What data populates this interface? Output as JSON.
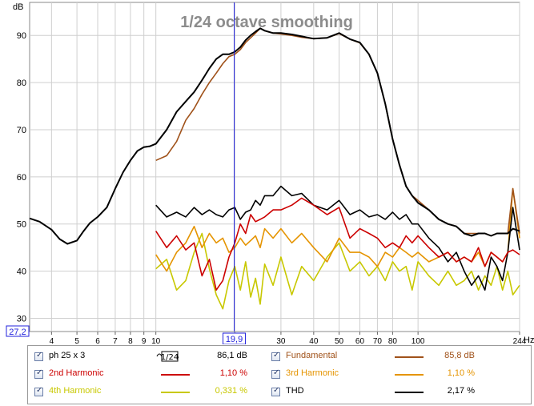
{
  "chart_data": {
    "type": "line",
    "title": "1/24 octave smoothing",
    "ylabel": "dB",
    "xlabel": "Hz",
    "xscale": "log",
    "xlim": [
      3.3,
      244
    ],
    "ylim": [
      27.2,
      97
    ],
    "x_ticks": [
      4,
      5,
      6,
      7,
      8,
      9,
      10,
      20,
      30,
      40,
      50,
      60,
      70,
      80,
      100,
      244
    ],
    "x_tick_labels": [
      "4",
      "5",
      "6",
      "7",
      "8",
      "9",
      "10",
      "",
      "30",
      "40",
      "50",
      "60",
      "70",
      "80",
      "100",
      "244"
    ],
    "y_ticks": [
      30,
      40,
      50,
      60,
      70,
      80,
      90
    ],
    "y_tick_labels": [
      "30",
      "40",
      "50",
      "60",
      "70",
      "80",
      "90"
    ],
    "y_min_label": "27,2",
    "cursor": {
      "x": 19.9,
      "label": "19,9"
    },
    "grid": true,
    "series": [
      {
        "name": "ph 25 x 3",
        "color": "#000000",
        "x": [
          3.3,
          3.6,
          4,
          4.3,
          4.6,
          5,
          5.3,
          5.6,
          6,
          6.5,
          7,
          7.5,
          8,
          8.5,
          9,
          9.5,
          10,
          11,
          12,
          13,
          14,
          15,
          16,
          17,
          18,
          19,
          20,
          21,
          22,
          23,
          24,
          25,
          26,
          28,
          30,
          33,
          36,
          40,
          45,
          50,
          55,
          60,
          65,
          70,
          75,
          80,
          85,
          90,
          95,
          100,
          110,
          120,
          130,
          140,
          150,
          160,
          170,
          180,
          190,
          200,
          210,
          220,
          230,
          244
        ],
        "y": [
          51.2,
          50.5,
          48.8,
          46.8,
          45.8,
          46.5,
          48.5,
          50.2,
          51.5,
          53.5,
          57.5,
          61,
          63.5,
          65.5,
          66.3,
          66.5,
          67,
          70,
          73.8,
          76,
          78,
          80.5,
          83,
          85,
          86,
          86,
          86.5,
          87.5,
          89,
          90,
          90.8,
          91.5,
          91,
          90.5,
          90.5,
          90.2,
          89.8,
          89.3,
          89.5,
          90.5,
          89.2,
          88.5,
          86,
          82,
          75.5,
          68,
          62.5,
          58,
          56,
          54.5,
          53,
          51,
          50,
          49.5,
          48,
          47.5,
          48,
          48,
          47.5,
          48,
          48,
          48,
          49,
          48.5
        ]
      },
      {
        "name": "2nd Harmonic",
        "color": "#cc0000",
        "value": "1,10 %",
        "x": [
          10,
          11,
          12,
          13,
          14,
          15,
          16,
          17,
          18,
          19,
          20,
          21,
          22,
          23,
          24,
          25,
          26,
          28,
          30,
          33,
          36,
          40,
          45,
          50,
          55,
          60,
          65,
          70,
          75,
          80,
          85,
          90,
          95,
          100,
          110,
          120,
          130,
          140,
          150,
          160,
          170,
          180,
          190,
          200,
          210,
          220,
          230,
          244
        ],
        "y": [
          48.5,
          45,
          47.5,
          44.5,
          46,
          39,
          42.5,
          36,
          38,
          43,
          46,
          50,
          48,
          52,
          50.5,
          51,
          51.5,
          53,
          53,
          54,
          55.5,
          54,
          52,
          53.5,
          47,
          49,
          48,
          47,
          45,
          46,
          45,
          47.5,
          46,
          47.5,
          45,
          43,
          44,
          42,
          43,
          42,
          45,
          41,
          44,
          43,
          42,
          44,
          44.5,
          43.5
        ]
      },
      {
        "name": "3rd Harmonic",
        "color": "#e59400",
        "value": "1,10 %",
        "x": [
          10,
          11,
          12,
          13,
          14,
          15,
          16,
          17,
          18,
          19,
          20,
          21,
          22,
          23,
          24,
          25,
          26,
          28,
          30,
          33,
          36,
          40,
          45,
          50,
          55,
          60,
          65,
          70,
          75,
          80,
          85,
          90,
          95,
          100,
          110,
          120,
          130,
          140,
          150,
          160,
          170,
          180,
          190,
          200,
          210,
          220,
          230,
          244
        ],
        "y": [
          43.5,
          40,
          44,
          46,
          49.5,
          45,
          48,
          46,
          47,
          44,
          45,
          47,
          45.5,
          46.5,
          47.5,
          45,
          49,
          47,
          49,
          46,
          48,
          45,
          42,
          47,
          44,
          44,
          43,
          41,
          44,
          43,
          45,
          44,
          43,
          44,
          42,
          43,
          44,
          42,
          43,
          42,
          44,
          41,
          44,
          43,
          42,
          44,
          57.5,
          47
        ]
      },
      {
        "name": "4th Harmonic",
        "color": "#c8c800",
        "value": "0,331 %",
        "x": [
          10,
          11,
          12,
          13,
          14,
          15,
          16,
          17,
          18,
          19,
          20,
          21,
          22,
          23,
          24,
          25,
          26,
          28,
          30,
          33,
          36,
          40,
          45,
          50,
          55,
          60,
          65,
          70,
          75,
          80,
          85,
          90,
          95,
          100,
          110,
          120,
          130,
          140,
          150,
          160,
          170,
          180,
          190,
          200,
          210,
          220,
          230,
          244
        ],
        "y": [
          40.5,
          42.5,
          36,
          38,
          44,
          48,
          40.5,
          35,
          32,
          38,
          41,
          36,
          42,
          34.5,
          38.5,
          33,
          41.5,
          37,
          43,
          35,
          41,
          38,
          43,
          46,
          40,
          42,
          39,
          41,
          38,
          42,
          40,
          41,
          36,
          42,
          39,
          37,
          40,
          37,
          38,
          40,
          36,
          39,
          37,
          41,
          36,
          40,
          35,
          37
        ]
      },
      {
        "name": "THD",
        "color": "#000000",
        "value": "2,17 %",
        "x": [
          10,
          11,
          12,
          13,
          14,
          15,
          16,
          17,
          18,
          19,
          20,
          21,
          22,
          23,
          24,
          25,
          26,
          28,
          30,
          33,
          36,
          40,
          45,
          50,
          55,
          60,
          65,
          70,
          75,
          80,
          85,
          90,
          95,
          100,
          110,
          120,
          130,
          140,
          150,
          160,
          170,
          180,
          190,
          200,
          210,
          220,
          230,
          244
        ],
        "y": [
          54,
          51.5,
          52.5,
          51.5,
          53.5,
          52,
          53,
          52,
          51.5,
          53,
          53.5,
          51,
          52.5,
          53,
          55,
          54,
          56,
          56,
          58,
          56,
          56.5,
          54,
          53,
          55,
          52,
          53,
          51.5,
          52,
          51,
          52.5,
          51,
          52,
          50,
          50,
          47,
          45,
          42,
          44,
          40,
          37,
          39,
          36,
          43,
          41,
          38,
          44,
          53.5,
          44.5
        ]
      },
      {
        "name": "Fundamental",
        "color": "#a0521a",
        "value": "85,8 dB",
        "x": [
          10,
          11,
          12,
          13,
          14,
          15,
          16,
          17,
          18,
          19,
          20,
          21,
          22,
          23,
          24,
          25,
          26,
          28,
          30,
          33,
          36,
          40,
          45,
          50,
          55,
          60,
          65,
          70,
          75,
          80,
          85,
          90,
          95,
          100,
          110,
          120,
          130,
          140,
          150,
          160,
          170,
          180,
          190,
          200,
          210,
          220,
          230,
          244
        ],
        "y": [
          63.5,
          64.5,
          67.5,
          72,
          74.5,
          77.5,
          80,
          82,
          84,
          85.5,
          86,
          87,
          88.5,
          89.5,
          90.5,
          91.5,
          91,
          90.5,
          90.3,
          90,
          89.6,
          89.3,
          89.5,
          90.4,
          89.2,
          88.4,
          86,
          82,
          75.5,
          68,
          62.5,
          58,
          56,
          55,
          53,
          51,
          50,
          49.5,
          48,
          48,
          48,
          48,
          47.5,
          48,
          48,
          48,
          57.5,
          48
        ]
      }
    ]
  },
  "legend": {
    "rows": [
      {
        "label": "ph 25 x 3",
        "value": "86,1 dB",
        "smoothing_icon": "1/24",
        "label_color": "#000000"
      },
      {
        "label": "Fundamental",
        "value": "85,8 dB",
        "label_color": "#a0521a"
      },
      {
        "label": "2nd Harmonic",
        "value": "1,10 %",
        "label_color": "#cc0000"
      },
      {
        "label": "3rd Harmonic",
        "value": "1,10 %",
        "label_color": "#e59400"
      },
      {
        "label": "4th Harmonic",
        "value": "0,331 %",
        "label_color": "#c8c800"
      },
      {
        "label": "THD",
        "value": "2,17 %",
        "label_color": "#000000"
      }
    ]
  }
}
